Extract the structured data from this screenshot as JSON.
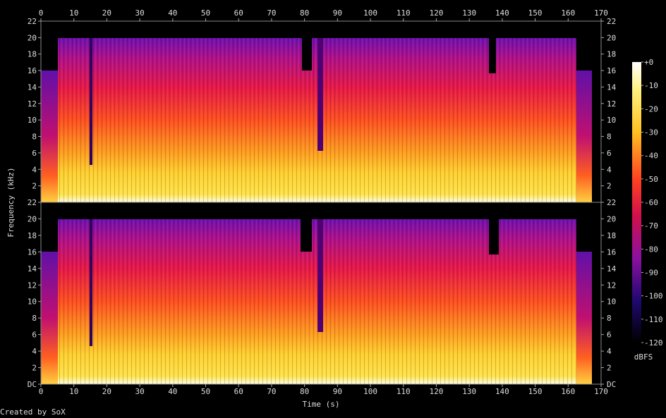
{
  "chart_data": [
    {
      "type": "spectrogram",
      "y_label": "Frequency (kHz)",
      "xlim": [
        0,
        170
      ],
      "xticks": [
        0,
        10,
        20,
        30,
        40,
        50,
        60,
        70,
        80,
        90,
        100,
        110,
        120,
        130,
        140,
        150,
        160,
        170
      ],
      "ylim": [
        0,
        22
      ],
      "yticks": [
        2,
        4,
        6,
        8,
        10,
        12,
        14,
        16,
        18,
        20,
        22
      ]
    },
    {
      "type": "spectrogram",
      "x_label": "Time (s)",
      "xlim": [
        0,
        170
      ],
      "xticks": [
        0,
        10,
        20,
        30,
        40,
        50,
        60,
        70,
        80,
        90,
        100,
        110,
        120,
        130,
        140,
        150,
        160,
        170
      ],
      "ylim": [
        0,
        22
      ],
      "yticks": [
        {
          "value": 0,
          "label": "DC"
        },
        2,
        4,
        6,
        8,
        10,
        12,
        14,
        16,
        18,
        20,
        22
      ],
      "colorbar": {
        "label": "dBFS",
        "lim": [
          -120,
          0
        ],
        "ticks": [
          {
            "value": 0,
            "label": "+0"
          },
          -10,
          -20,
          -30,
          -40,
          -50,
          -60,
          -70,
          -80,
          -90,
          -100,
          -110,
          -120
        ]
      }
    }
  ],
  "credit": "Created by SoX"
}
